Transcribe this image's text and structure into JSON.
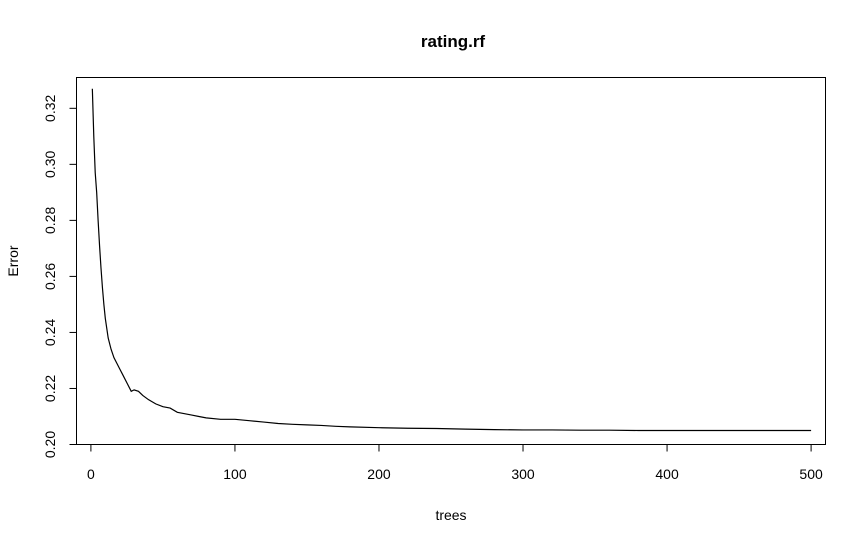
{
  "chart_data": {
    "type": "line",
    "title": "rating.rf",
    "xlabel": "trees",
    "ylabel": "Error",
    "xlim": [
      -10,
      510
    ],
    "ylim": [
      0.2,
      0.331
    ],
    "x_ticks": [
      0,
      100,
      200,
      300,
      400,
      500
    ],
    "x_tick_labels": [
      "0",
      "100",
      "200",
      "300",
      "400",
      "500"
    ],
    "y_ticks": [
      0.2,
      0.22,
      0.24,
      0.26,
      0.28,
      0.3,
      0.32
    ],
    "y_tick_labels": [
      "0.20",
      "0.22",
      "0.24",
      "0.26",
      "0.28",
      "0.30",
      "0.32"
    ],
    "grid": false,
    "series": [
      {
        "color": "#000000",
        "x": [
          1,
          2,
          3,
          4,
          5,
          6,
          7,
          8,
          9,
          10,
          12,
          14,
          16,
          18,
          20,
          22,
          25,
          28,
          30,
          33,
          36,
          40,
          45,
          50,
          55,
          60,
          65,
          70,
          75,
          80,
          90,
          100,
          110,
          120,
          130,
          140,
          150,
          160,
          170,
          180,
          200,
          220,
          240,
          260,
          280,
          300,
          320,
          340,
          360,
          380,
          400,
          420,
          440,
          460,
          480,
          500
        ],
        "y": [
          0.327,
          0.31,
          0.297,
          0.29,
          0.28,
          0.271,
          0.263,
          0.256,
          0.25,
          0.245,
          0.238,
          0.234,
          0.231,
          0.229,
          0.227,
          0.225,
          0.222,
          0.219,
          0.2195,
          0.219,
          0.2175,
          0.216,
          0.2145,
          0.2135,
          0.213,
          0.2115,
          0.211,
          0.2105,
          0.21,
          0.2095,
          0.209,
          0.209,
          0.2085,
          0.208,
          0.2075,
          0.2072,
          0.207,
          0.2068,
          0.2065,
          0.2063,
          0.206,
          0.2058,
          0.2057,
          0.2055,
          0.2053,
          0.2052,
          0.2052,
          0.2051,
          0.2051,
          0.205,
          0.205,
          0.205,
          0.205,
          0.205,
          0.205,
          0.205
        ]
      }
    ]
  }
}
